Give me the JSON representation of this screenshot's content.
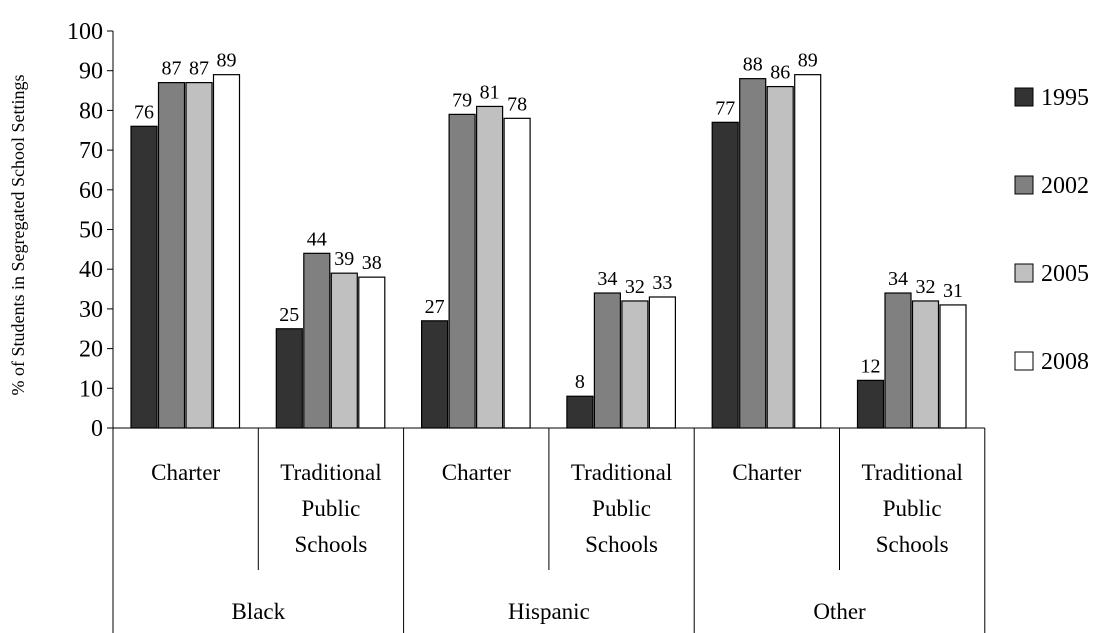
{
  "chart_data": {
    "type": "bar",
    "ylabel": "% of Students in Segregated School Settings",
    "ylim": [
      0,
      100
    ],
    "yticks": [
      "0",
      "10",
      "20",
      "30",
      "40",
      "50",
      "60",
      "70",
      "80",
      "90",
      "100"
    ],
    "grid": false,
    "legend_position": "right",
    "groups": [
      "Black",
      "Hispanic",
      "Other"
    ],
    "categories": [
      {
        "group": "Black",
        "lines": [
          "Charter"
        ]
      },
      {
        "group": "Black",
        "lines": [
          "Traditional",
          "Public",
          "Schools"
        ]
      },
      {
        "group": "Hispanic",
        "lines": [
          "Charter"
        ]
      },
      {
        "group": "Hispanic",
        "lines": [
          "Traditional",
          "Public",
          "Schools"
        ]
      },
      {
        "group": "Other",
        "lines": [
          "Charter"
        ]
      },
      {
        "group": "Other",
        "lines": [
          "Traditional",
          "Public",
          "Schools"
        ]
      }
    ],
    "series": [
      {
        "name": "1995",
        "color": "#333333",
        "values": [
          76,
          25,
          27,
          8,
          77,
          12
        ],
        "labels": [
          "76",
          "25",
          "27",
          "8",
          "77",
          "12"
        ]
      },
      {
        "name": "2002",
        "color": "#808080",
        "values": [
          87,
          44,
          79,
          34,
          88,
          34
        ],
        "labels": [
          "87",
          "44",
          "79",
          "34",
          "88",
          "34"
        ]
      },
      {
        "name": "2005",
        "color": "#c0c0c0",
        "values": [
          87,
          39,
          81,
          32,
          86,
          32
        ],
        "labels": [
          "87",
          "39",
          "81",
          "32",
          "86",
          "32"
        ]
      },
      {
        "name": "2008",
        "color": "#ffffff",
        "values": [
          89,
          38,
          78,
          33,
          89,
          31
        ],
        "labels": [
          "89",
          "38",
          "78",
          "33",
          "89",
          "31"
        ]
      }
    ]
  }
}
